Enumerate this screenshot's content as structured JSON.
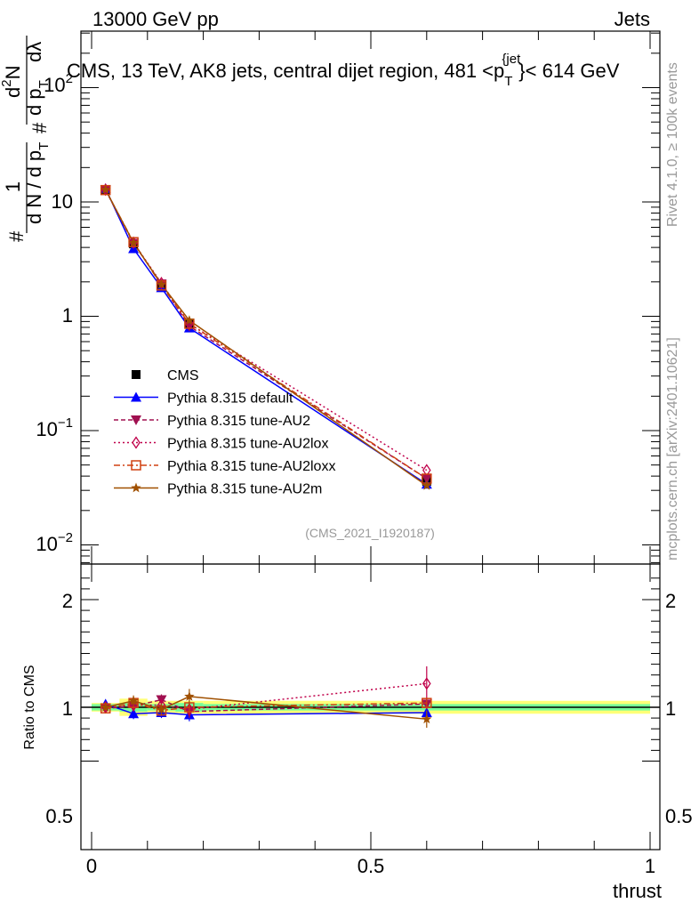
{
  "header": {
    "left": "13000 GeV pp",
    "right": "Jets"
  },
  "title_parts": {
    "main": "CMS, 13 TeV, AK8 jets, central dijet region, 481 <p",
    "sup": "{jet",
    "sub": "T",
    "tail": "}< 614 GeV"
  },
  "ylabel_top": {
    "hash1": "#",
    "one": "1",
    "dn": "d N / d p",
    "t1": "T",
    "hash2": "#",
    "d2n": "d",
    "exp2": "2",
    "n": "N",
    "dp": "d p",
    "t2": "T",
    "dl": "dλ"
  },
  "side": {
    "rivet": "Rivet 4.1.0, ≥ 100k events",
    "mcplots": "mcplots.cern.ch [arXiv:2401.10621]"
  },
  "analysis_id": "(CMS_2021_I1920187)",
  "ratio_ylabel": "Ratio to CMS",
  "xlabel": "thrust",
  "axis_ticks": {
    "top": [
      "10",
      "1",
      "10",
      "10"
    ],
    "top_exp": [
      "2",
      "",
      "−1",
      "−2"
    ],
    "top_text": [
      "10",
      "10",
      "1",
      "10",
      "10"
    ],
    "ratio": [
      "2",
      "1",
      "0.5"
    ],
    "x": [
      "0",
      "0.5",
      "1"
    ]
  },
  "chart_data": {
    "type": "line",
    "x_range": [
      0,
      1
    ],
    "y_range_top": [
      0.0075,
      300
    ],
    "y_range_ratio": [
      0.4,
      2.4
    ],
    "x": [
      0.025,
      0.075,
      0.125,
      0.175,
      0.6
    ],
    "data": {
      "name": "CMS",
      "values": [
        12.8,
        4.3,
        1.85,
        0.85,
        0.036
      ],
      "errors": [
        0.4,
        0.15,
        0.08,
        0.05,
        0.004
      ],
      "band_stat_halfwidth": [
        0.03,
        0.04,
        0.03,
        0.04,
        0.03
      ],
      "band_tot_halfwidth": [
        0.04,
        0.08,
        0.06,
        0.06,
        0.06
      ]
    },
    "series": [
      {
        "name": "Pythia 8.315 default",
        "color": "#0000ff",
        "dash": "",
        "marker": "triangle-up",
        "values": [
          13.1,
          3.9,
          1.78,
          0.79,
          0.034
        ],
        "ratio": [
          1.03,
          0.94,
          0.95,
          0.93,
          0.95
        ],
        "ratio_err": [
          0.02,
          0.05,
          0.05,
          0.06,
          0.05
        ]
      },
      {
        "name": "Pythia 8.315 tune-AU2",
        "color": "#a01050",
        "dash": "5,3",
        "marker": "triangle-down",
        "values": [
          12.7,
          4.35,
          1.92,
          0.82,
          0.038
        ],
        "ratio": [
          0.99,
          1.01,
          1.07,
          0.96,
          1.03
        ],
        "ratio_err": [
          0.02,
          0.05,
          0.05,
          0.06,
          0.05
        ]
      },
      {
        "name": "Pythia 8.315 tune-AU2lox",
        "color": "#c0004a",
        "dash": "2,3",
        "marker": "diamond-open",
        "values": [
          12.8,
          4.4,
          1.95,
          0.86,
          0.045
        ],
        "ratio": [
          1.0,
          1.02,
          1.02,
          0.98,
          1.22
        ],
        "ratio_err": [
          0.02,
          0.05,
          0.05,
          0.06,
          0.16
        ]
      },
      {
        "name": "Pythia 8.315 tune-AU2loxx",
        "color": "#d04010",
        "dash": "7,3,2,3",
        "marker": "square-open",
        "values": [
          12.7,
          4.45,
          1.86,
          0.86,
          0.038
        ],
        "ratio": [
          0.99,
          1.04,
          0.97,
          1.0,
          1.04
        ],
        "ratio_err": [
          0.02,
          0.05,
          0.05,
          0.06,
          0.05
        ]
      },
      {
        "name": "Pythia 8.315 tune-AU2m",
        "color": "#a05000",
        "dash": "",
        "marker": "star",
        "values": [
          12.8,
          4.4,
          1.9,
          0.92,
          0.033
        ],
        "ratio": [
          1.0,
          1.06,
          0.98,
          1.1,
          0.89
        ],
        "ratio_err": [
          0.02,
          0.05,
          0.05,
          0.07,
          0.08
        ]
      }
    ]
  }
}
